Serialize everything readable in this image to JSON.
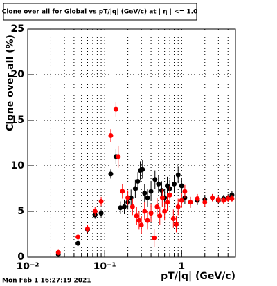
{
  "chart_data": {
    "type": "scatter",
    "title": "Clone  over all for Global vs pT/|q| (GeV/c) at |  η | <= 1.0",
    "x_label": "pT/|q| (GeV/c)",
    "y_label": "Clone  over all (%)",
    "timestamp": "Mon Feb  1 16:27:19 2021",
    "xscale": "log",
    "grid": true,
    "xlim": [
      0.01,
      5
    ],
    "ylim": [
      0,
      25
    ],
    "xticks": [
      {
        "value": 0.01,
        "label": "10⁻²"
      },
      {
        "value": 0.1,
        "label": "10⁻¹"
      },
      1
    ],
    "xminorticks": [
      0.02,
      0.03,
      0.04,
      0.05,
      0.06,
      0.07,
      0.08,
      0.09,
      0.2,
      0.3,
      0.4,
      0.5,
      0.6,
      0.7,
      0.8,
      0.9,
      2,
      3,
      4
    ],
    "yticks": [
      0,
      5,
      10,
      15,
      20,
      25
    ],
    "series": [
      {
        "color": "#000000",
        "x": [
          0.025,
          0.045,
          0.06,
          0.075,
          0.09,
          0.12,
          0.14,
          0.16,
          0.18,
          0.2,
          0.22,
          0.25,
          0.27,
          0.29,
          0.31,
          0.33,
          0.36,
          0.4,
          0.45,
          0.5,
          0.55,
          0.6,
          0.65,
          0.7,
          0.8,
          0.9,
          1.0,
          1.1,
          1.3,
          1.6,
          2.0,
          2.5,
          3.0,
          3.5,
          4.0,
          4.5
        ],
        "values": [
          0.3,
          1.5,
          3.0,
          4.6,
          4.8,
          9.1,
          11.0,
          5.4,
          5.5,
          6.0,
          6.5,
          7.5,
          8.3,
          9.5,
          9.6,
          7.0,
          6.5,
          7.2,
          8.5,
          8.0,
          7.3,
          6.5,
          7.8,
          7.5,
          8.0,
          9.0,
          7.8,
          6.5,
          6.0,
          6.2,
          6.3,
          6.5,
          6.2,
          6.4,
          6.5,
          6.8
        ],
        "errors": [
          0.3,
          0.3,
          0.4,
          0.4,
          0.4,
          0.5,
          0.8,
          0.7,
          0.8,
          0.8,
          0.9,
          1.0,
          1.0,
          1.0,
          1.0,
          1.0,
          1.0,
          1.0,
          1.0,
          1.0,
          1.0,
          1.0,
          1.0,
          1.0,
          1.0,
          0.9,
          0.8,
          0.7,
          0.6,
          0.5,
          0.5,
          0.4,
          0.4,
          0.4,
          0.4,
          0.4
        ]
      },
      {
        "color": "#ff0000",
        "x": [
          0.025,
          0.045,
          0.06,
          0.075,
          0.09,
          0.12,
          0.14,
          0.15,
          0.17,
          0.2,
          0.23,
          0.26,
          0.28,
          0.3,
          0.33,
          0.36,
          0.4,
          0.44,
          0.48,
          0.52,
          0.56,
          0.6,
          0.65,
          0.7,
          0.78,
          0.85,
          0.9,
          1.0,
          1.1,
          1.3,
          1.6,
          2.0,
          2.5,
          3.0,
          3.5,
          4.0,
          4.5
        ],
        "values": [
          0.5,
          2.2,
          3.1,
          5.0,
          6.1,
          13.3,
          16.2,
          11.0,
          7.2,
          6.5,
          5.5,
          4.5,
          4.0,
          3.5,
          5.0,
          4.0,
          4.8,
          2.1,
          5.5,
          4.5,
          6.5,
          5.0,
          6.0,
          6.8,
          4.2,
          3.6,
          5.5,
          6.2,
          7.2,
          6.0,
          6.4,
          6.0,
          6.5,
          6.3,
          6.2,
          6.4,
          6.4
        ],
        "errors": [
          0.3,
          0.3,
          0.4,
          0.5,
          0.5,
          0.7,
          0.8,
          1.2,
          0.8,
          0.8,
          0.9,
          1.0,
          1.0,
          1.0,
          1.0,
          1.0,
          1.0,
          1.0,
          1.0,
          1.0,
          1.0,
          1.0,
          1.0,
          1.0,
          1.0,
          0.9,
          0.9,
          0.8,
          0.7,
          0.6,
          0.5,
          0.5,
          0.4,
          0.4,
          0.4,
          0.4,
          0.4
        ]
      }
    ]
  }
}
